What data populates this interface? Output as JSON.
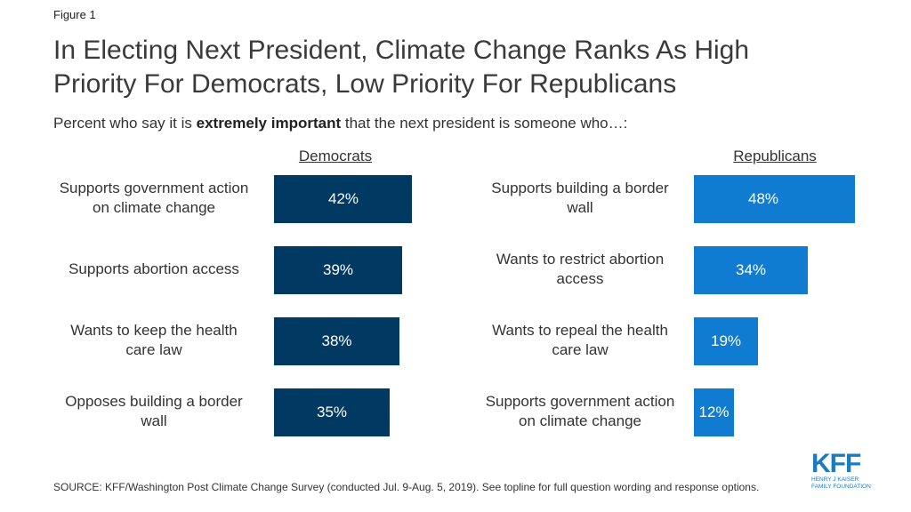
{
  "figure_label": "Figure 1",
  "title_line1": "In Electing Next President, Climate Change Ranks As High",
  "title_line2": "Priority For Democrats, Low Priority For Republicans",
  "subtitle": {
    "pre": "Percent who say it is ",
    "bold": "extremely important",
    "post": " that the next president is someone who…:"
  },
  "source": "SOURCE: KFF/Washington Post Climate Change Survey (conducted Jul. 9-Aug. 5, 2019). See topline for full question wording and response options.",
  "logo": {
    "mark": "KFF",
    "line1": "HENRY J KAISER",
    "line2": "FAMILY FOUNDATION"
  },
  "chart_data": [
    {
      "type": "bar",
      "orientation": "horizontal",
      "title": "Democrats",
      "color": "#003a63",
      "categories": [
        [
          "Supports government action",
          "on climate change"
        ],
        [
          "Supports abortion access"
        ],
        [
          "Wants to keep the health",
          "care law"
        ],
        [
          "Opposes building a border",
          "wall"
        ]
      ],
      "values": [
        42,
        39,
        38,
        35
      ],
      "labels": [
        "42%",
        "39%",
        "38%",
        "35%"
      ]
    },
    {
      "type": "bar",
      "orientation": "horizontal",
      "title": "Republicans",
      "color": "#0f7bd1",
      "categories": [
        [
          "Supports building a border",
          "wall"
        ],
        [
          "Wants to restrict abortion",
          "access"
        ],
        [
          "Wants to repeal the health",
          "care law"
        ],
        [
          "Supports government action",
          "on climate change"
        ]
      ],
      "values": [
        48,
        34,
        19,
        12
      ],
      "labels": [
        "48%",
        "34%",
        "19%",
        "12%"
      ]
    }
  ]
}
